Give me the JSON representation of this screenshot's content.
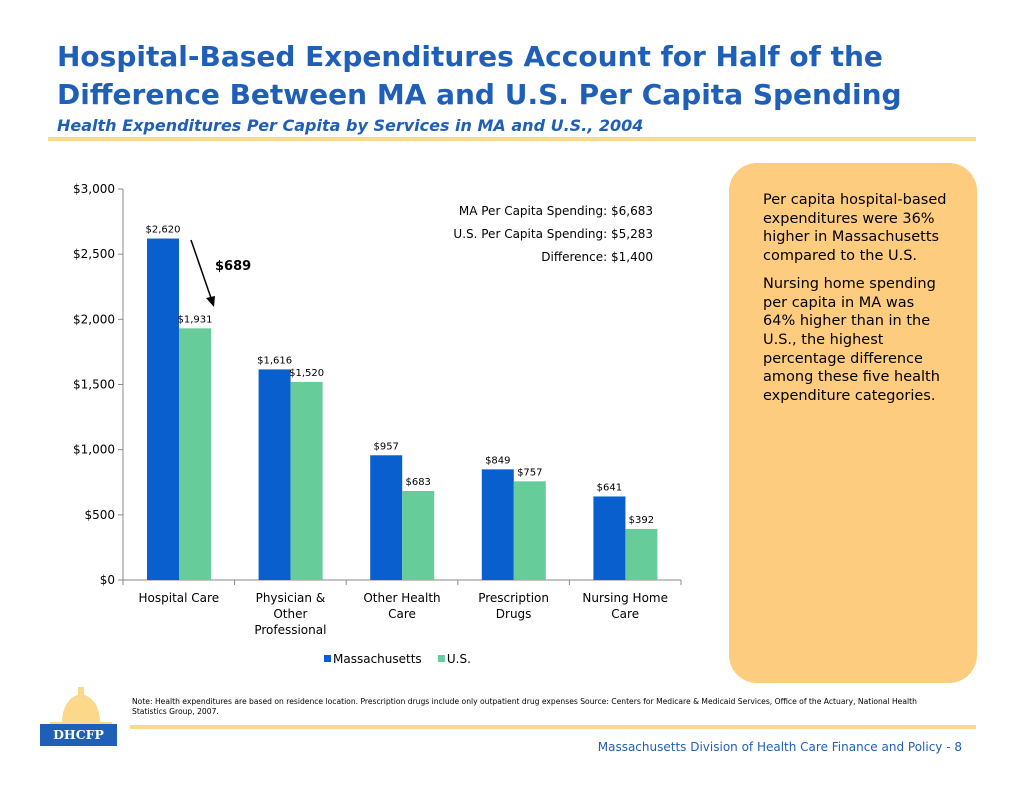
{
  "title": "Hospital-Based Expenditures Account for Half of the Difference Between MA and U.S. Per Capita Spending",
  "subtitle": "Health Expenditures Per Capita by Services in MA and U.S., 2004",
  "chart_data": {
    "type": "bar",
    "categories": [
      [
        "Hospital Care"
      ],
      [
        "Physician &",
        "Other",
        "Professional"
      ],
      [
        "Other Health",
        "Care"
      ],
      [
        "Prescription",
        "Drugs"
      ],
      [
        "Nursing Home",
        "Care"
      ]
    ],
    "series": [
      {
        "name": "Massachusetts",
        "color": "#0a5fce",
        "values": [
          2620,
          1616,
          957,
          849,
          641
        ],
        "labels": [
          "$2,620",
          "$1,616",
          "$957",
          "$849",
          "$641"
        ]
      },
      {
        "name": "U.S.",
        "color": "#66cc99",
        "values": [
          1931,
          1520,
          683,
          757,
          392
        ],
        "labels": [
          "$1,931",
          "$1,520",
          "$683",
          "$757",
          "$392"
        ]
      }
    ],
    "ylim": [
      0,
      3000
    ],
    "yticks": [
      0,
      500,
      1000,
      1500,
      2000,
      2500,
      3000
    ],
    "ytick_labels": [
      "$0",
      "$500",
      "$1,000",
      "$1,500",
      "$2,000",
      "$2,500",
      "$3,000"
    ],
    "legend_position": "bottom",
    "grid": false,
    "annotations": {
      "summary": [
        "MA Per Capita Spending: $6,683",
        "U.S. Per Capita Spending: $5,283",
        "Difference: $1,400"
      ],
      "difference_callout": "$689"
    }
  },
  "side_panel": {
    "paragraphs": [
      "Per capita hospital-based expenditures were 36% higher in Massachusetts compared to the U.S.",
      "Nursing home spending per capita in MA was 64% higher than in the U.S., the highest percentage difference among these five health expenditure categories."
    ],
    "color": "#fdcc7e"
  },
  "note": "Note: Health expenditures are based on residence location. Prescription drugs include only outpatient drug expenses Source: Centers for Medicare & Medicaid Services, Office of the Actuary, National Health Statistics Group, 2007.",
  "logo": {
    "text": "DHCFP"
  },
  "footer": "Massachusetts Division of Health Care Finance and Policy - 8"
}
